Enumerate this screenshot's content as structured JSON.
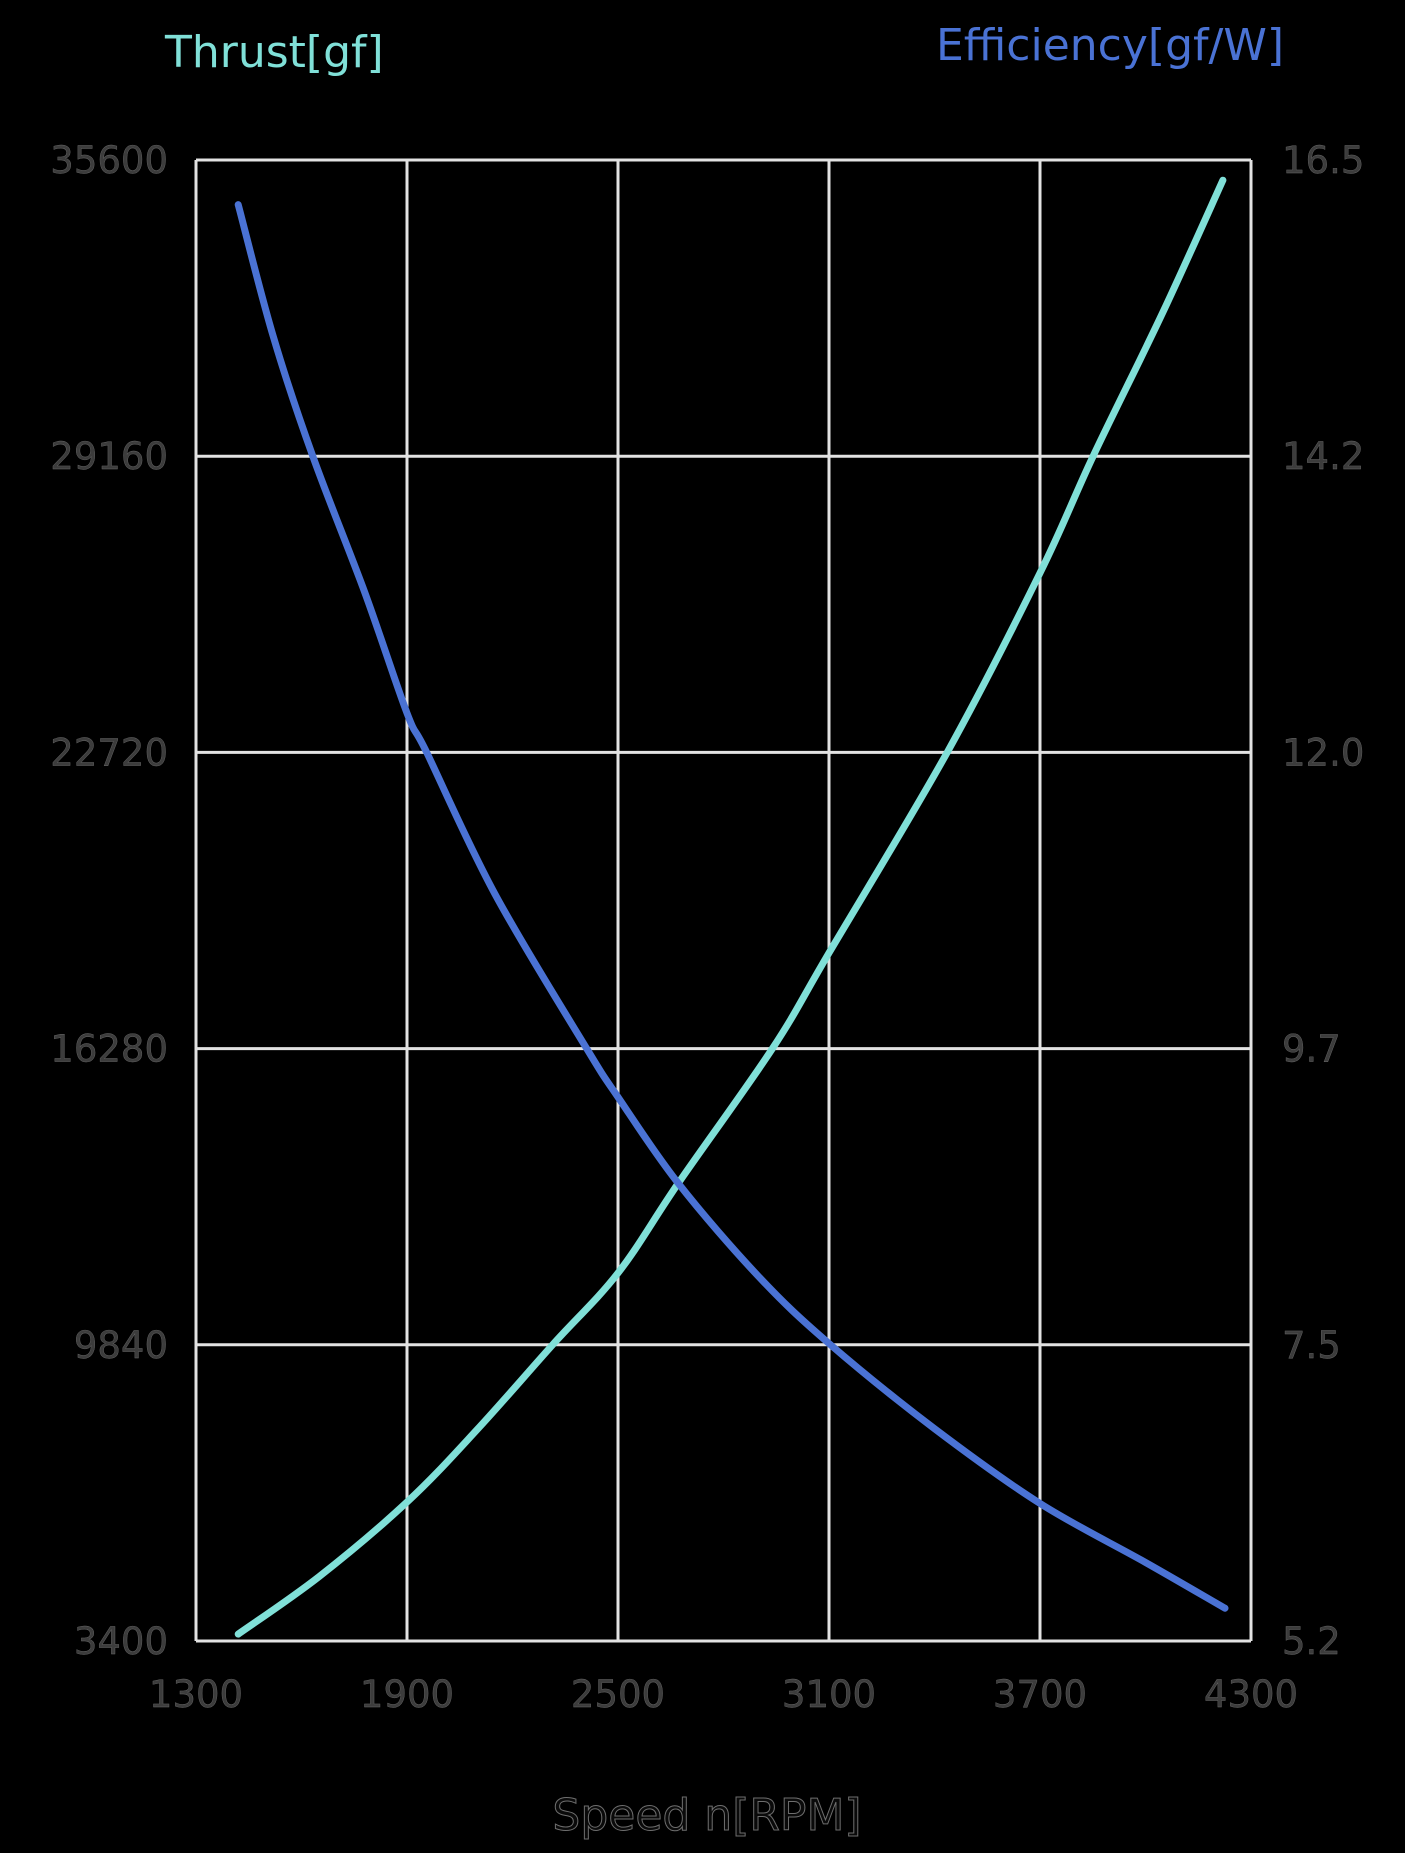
{
  "chart_data": {
    "type": "line",
    "title": "",
    "xlabel": "Speed n[RPM]",
    "ylabel_left": "Thrust[gf]",
    "ylabel_right": "Efficiency[gf/W]",
    "xlim": [
      1300,
      4300
    ],
    "ylim_left": [
      3400,
      35600
    ],
    "ylim_right": [
      5.2,
      16.5
    ],
    "x_ticks": [
      "1300",
      "1900",
      "2500",
      "3100",
      "3700",
      "4300"
    ],
    "y_ticks_left": [
      "35600",
      "29160",
      "22720",
      "16280",
      "9840",
      "3400"
    ],
    "y_ticks_right": [
      "16.5",
      "14.2",
      "12.0",
      "9.7",
      "7.5",
      "5.2"
    ],
    "grid": true,
    "legend": "none (axis titles colored per series)",
    "series": [
      {
        "name": "Thrust[gf]",
        "axis": "left",
        "color": "#80E0D8",
        "x": [
          1420,
          1650,
          1900,
          2100,
          2314,
          2500,
          2672,
          2939,
          3100,
          3436,
          3700,
          3851,
          4050,
          4220
        ],
        "values": [
          3550,
          4800,
          6420,
          8000,
          9840,
          11400,
          13360,
          16280,
          18360,
          22720,
          26620,
          29160,
          32300,
          35160
        ]
      },
      {
        "name": "Efficiency[gf/W]",
        "axis": "right",
        "color": "#4A72D4",
        "x": [
          1420,
          1520,
          1632,
          1780,
          1900,
          1956,
          2150,
          2411,
          2500,
          2672,
          2900,
          3100,
          3400,
          3700,
          4000,
          4226
        ],
        "values": [
          16.16,
          15.15,
          14.24,
          13.2,
          12.28,
          11.98,
          10.9,
          9.72,
          9.35,
          8.69,
          7.98,
          7.47,
          6.82,
          6.25,
          5.8,
          5.45
        ]
      }
    ]
  },
  "labels": {
    "thrust_axis_title": "Thrust[gf]",
    "efficiency_axis_title": "Efficiency[gf/W]",
    "x_axis_title": "Speed n[RPM]"
  },
  "colors": {
    "background": "#000000",
    "grid": "#E2E2E2",
    "thrust": "#80E0D8",
    "efficiency": "#4A72D4",
    "tick_text": "#3C3C3C"
  }
}
